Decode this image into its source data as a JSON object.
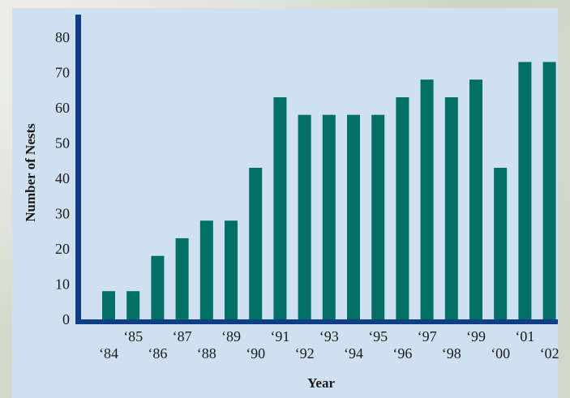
{
  "chart_data": {
    "type": "bar",
    "title": "",
    "xlabel": "Year",
    "ylabel": "Number of Nests",
    "ylim": [
      0,
      80
    ],
    "yticks": [
      "0",
      "10",
      "20",
      "30",
      "40",
      "50",
      "60",
      "70",
      "80"
    ],
    "categories": [
      "‘84",
      "‘85",
      "‘86",
      "‘87",
      "‘88",
      "‘89",
      "‘90",
      "‘91",
      "‘92",
      "‘93",
      "‘94",
      "‘95",
      "‘96",
      "‘97",
      "‘98",
      "‘99",
      "‘00",
      "‘01",
      "‘02"
    ],
    "values": [
      8,
      8,
      18,
      23,
      28,
      28,
      43,
      63,
      58,
      58,
      58,
      58,
      63,
      68,
      63,
      68,
      43,
      73,
      73
    ],
    "grid": false,
    "colors": {
      "bar": "#007066",
      "axis": "#0e3f86",
      "panel": "#cfe0f0"
    }
  }
}
